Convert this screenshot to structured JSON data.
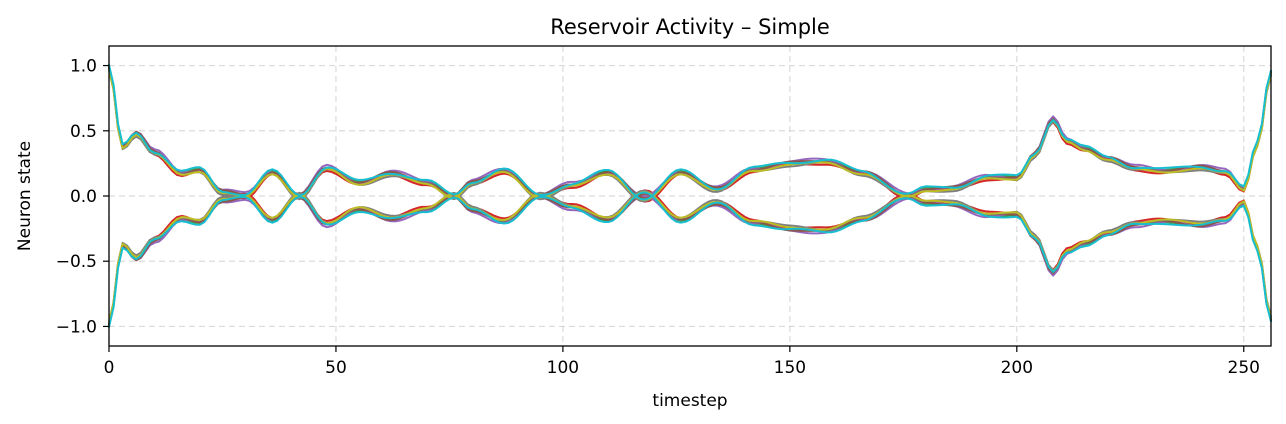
{
  "chart_data": {
    "type": "line",
    "title": "Reservoir Activity – Simple",
    "xlabel": "timestep",
    "ylabel": "Neuron state",
    "xlim": [
      0,
      256
    ],
    "ylim": [
      -1.15,
      1.15
    ],
    "xticks": [
      0,
      50,
      100,
      150,
      200,
      250
    ],
    "xtick_labels": [
      "0",
      "50",
      "100",
      "150",
      "200",
      "250"
    ],
    "yticks": [
      1.0,
      0.5,
      0.0,
      -0.5,
      -1.0
    ],
    "ytick_labels": [
      "1.0",
      "0.5",
      "0.0",
      "−0.5",
      "−1.0"
    ],
    "grid": true,
    "legend": "none",
    "note_series": "multiple neuron traces forming a mirrored (upper/lower) envelope around 0",
    "anchor_x": [
      0,
      3,
      6,
      10,
      16,
      20,
      25,
      30,
      36,
      42,
      48,
      55,
      62,
      70,
      76,
      80,
      87,
      95,
      102,
      110,
      118,
      126,
      134,
      142,
      150,
      158,
      166,
      176,
      180,
      186,
      194,
      200,
      204,
      208,
      211,
      215,
      220,
      226,
      232,
      240,
      246,
      250,
      253,
      256
    ],
    "upper_y": [
      0.98,
      0.38,
      0.48,
      0.33,
      0.17,
      0.2,
      0.03,
      0.0,
      0.18,
      0.0,
      0.21,
      0.1,
      0.17,
      0.1,
      0.0,
      0.1,
      0.19,
      0.0,
      0.08,
      0.18,
      -0.03,
      0.18,
      0.05,
      0.2,
      0.25,
      0.26,
      0.18,
      0.0,
      0.05,
      0.06,
      0.14,
      0.14,
      0.32,
      0.58,
      0.42,
      0.36,
      0.29,
      0.21,
      0.19,
      0.22,
      0.18,
      0.05,
      0.4,
      0.95
    ],
    "series": [
      {
        "color": "#1f77b4",
        "offset": 0.0
      },
      {
        "color": "#ff7f0e",
        "offset": -0.01
      },
      {
        "color": "#2ca02c",
        "offset": 0.01
      },
      {
        "color": "#d62728",
        "offset": -0.02
      },
      {
        "color": "#9467bd",
        "offset": 0.03
      },
      {
        "color": "#8c564b",
        "offset": 0.015
      },
      {
        "color": "#7f7f7f",
        "offset": -0.025
      },
      {
        "color": "#bcbd22",
        "offset": -0.015
      },
      {
        "color": "#17becf",
        "offset": 0.025
      }
    ]
  }
}
